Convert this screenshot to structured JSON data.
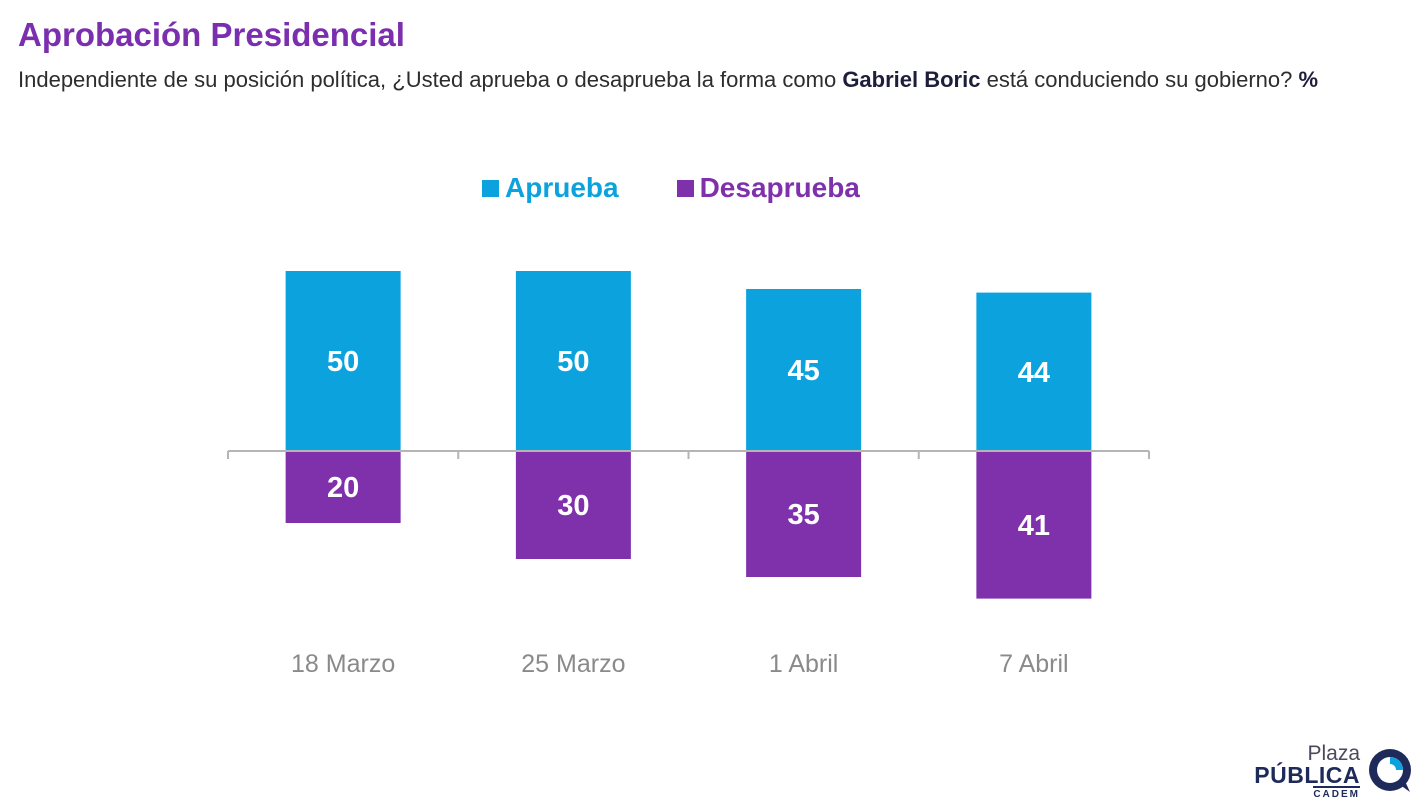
{
  "header": {
    "title": "Aprobación Presidencial",
    "question_pre": "Independiente de su posición política, ¿Usted aprueba o desaprueba la forma como ",
    "question_name": "Gabriel Boric",
    "question_post": " está conduciendo su gobierno? ",
    "question_unit": "%"
  },
  "legend": {
    "aprueba": "Aprueba",
    "desaprueba": "Desaprueba"
  },
  "colors": {
    "aprueba": "#0ba2dd",
    "desaprueba": "#7f31ab",
    "title": "#7b2fae"
  },
  "chart_data": {
    "type": "bar",
    "categories": [
      "18 Marzo",
      "25 Marzo",
      "1 Abril",
      "7 Abril"
    ],
    "series": [
      {
        "name": "Aprueba",
        "values": [
          50,
          50,
          45,
          44
        ],
        "direction": "up"
      },
      {
        "name": "Desaprueba",
        "values": [
          20,
          30,
          35,
          41
        ],
        "direction": "down"
      }
    ],
    "unit": "%",
    "ylim": [
      -45,
      55
    ],
    "grid": false,
    "legend_position": "top-center"
  },
  "logo": {
    "line1": "Plaza",
    "line2": "PÚBLICA",
    "line3": "CADEM"
  }
}
